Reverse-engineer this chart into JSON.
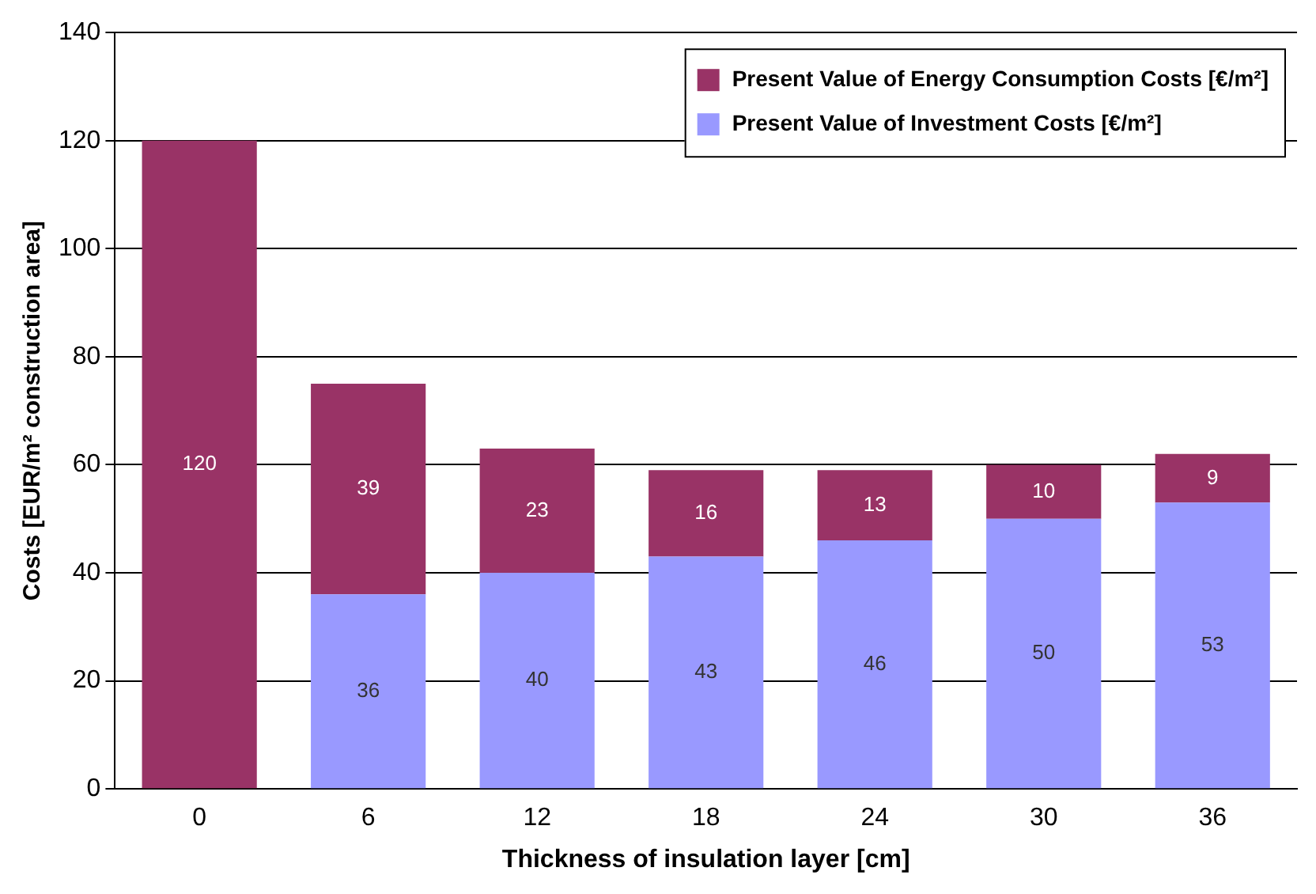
{
  "chart_data": {
    "type": "bar",
    "xlabel": "Thickness of insulation layer [cm]",
    "ylabel": "Costs [EUR/m² construction area]",
    "categories": [
      "0",
      "6",
      "12",
      "18",
      "24",
      "30",
      "36"
    ],
    "stacked": true,
    "series": [
      {
        "name": "Present Value of Investment Costs [€/m²]",
        "color": "#9999ff",
        "values": [
          null,
          36,
          40,
          43,
          46,
          50,
          53
        ]
      },
      {
        "name": "Present Value of Energy Consumption Costs [€/m²]",
        "color": "#993366",
        "values": [
          120,
          39,
          23,
          16,
          13,
          10,
          9
        ]
      }
    ],
    "ylim": [
      0,
      140
    ],
    "yticks": [
      0,
      20,
      40,
      60,
      80,
      100,
      120,
      140
    ],
    "grid": "y",
    "legend": "top right",
    "data_labels": true
  }
}
